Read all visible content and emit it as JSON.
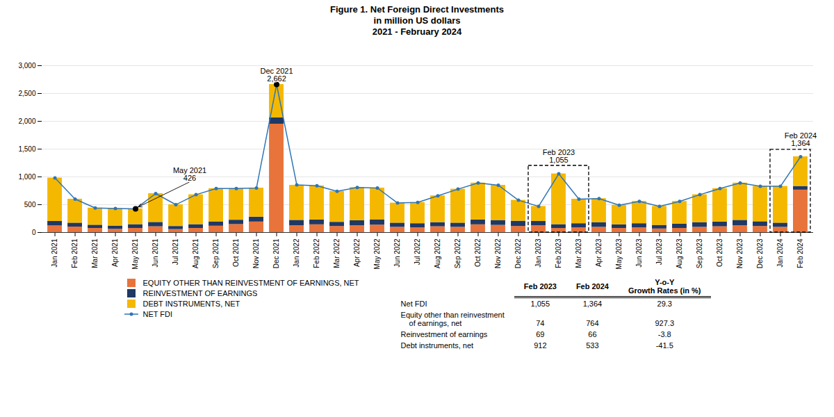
{
  "chart_data": {
    "type": "bar",
    "stacked": true,
    "title": "Figure 1. Net Foreign Direct Investments",
    "subtitle": [
      "in million US dollars",
      "2021 - February 2024"
    ],
    "categories": [
      "Jan 2021",
      "Feb 2021",
      "Mar 2021",
      "Apr 2021",
      "May 2021",
      "Jun 2021",
      "Jul 2021",
      "Aug 2021",
      "Sep 2021",
      "Oct 2021",
      "Nov 2021",
      "Dec 2021",
      "Jan 2022",
      "Feb 2022",
      "Mar 2022",
      "Apr 2022",
      "May 2022",
      "Jun 2022",
      "Jul 2022",
      "Aug 2022",
      "Sep 2022",
      "Oct 2022",
      "Nov 2022",
      "Dec 2022",
      "Jan 2023",
      "Feb 2023",
      "Mar 2023",
      "Apr 2023",
      "May 2023",
      "Jun 2023",
      "Jul 2023",
      "Aug 2023",
      "Sep 2023",
      "Oct 2023",
      "Nov 2023",
      "Dec 2023",
      "Jan 2024",
      "Feb 2024"
    ],
    "series": [
      {
        "name": "EQUITY OTHER THAN REINVESTMENT OF EARNINGS, NET",
        "color": "#E8743B",
        "values": [
          120,
          100,
          75,
          60,
          75,
          105,
          55,
          75,
          115,
          145,
          190,
          1950,
          125,
          140,
          110,
          125,
          135,
          95,
          85,
          105,
          95,
          140,
          130,
          110,
          125,
          74,
          85,
          95,
          75,
          85,
          65,
          75,
          95,
          105,
          125,
          110,
          95,
          764
        ]
      },
      {
        "name": "REINVESTMENT OF EARNINGS",
        "color": "#1F3864",
        "values": [
          80,
          70,
          58,
          58,
          68,
          78,
          55,
          68,
          78,
          78,
          88,
          112,
          95,
          88,
          75,
          88,
          95,
          75,
          75,
          75,
          75,
          88,
          88,
          95,
          75,
          69,
          75,
          85,
          65,
          75,
          65,
          75,
          85,
          85,
          95,
          85,
          75,
          66
        ]
      },
      {
        "name": "DEBT INSTRUMENTS, NET",
        "color": "#F5B800",
        "values": [
          780,
          430,
          307,
          312,
          283,
          517,
          390,
          537,
          597,
          567,
          522,
          600,
          630,
          612,
          555,
          597,
          570,
          360,
          380,
          480,
          610,
          662,
          632,
          375,
          270,
          912,
          440,
          430,
          350,
          400,
          340,
          410,
          500,
          600,
          670,
          635,
          660,
          533
        ]
      },
      {
        "name": "NET FDI",
        "type": "line",
        "color": "#2E75B6",
        "marker": "o",
        "values": [
          980,
          600,
          440,
          430,
          426,
          700,
          500,
          680,
          790,
          790,
          800,
          2662,
          855,
          840,
          740,
          810,
          800,
          530,
          540,
          660,
          780,
          890,
          850,
          580,
          470,
          1055,
          600,
          610,
          490,
          560,
          470,
          560,
          680,
          790,
          890,
          830,
          830,
          1364
        ]
      }
    ],
    "ylim": [
      0,
      3000
    ],
    "yticks": [
      0,
      500,
      {
        "value": 1000,
        "label": "1,000"
      },
      {
        "value": 1500,
        "label": "1,500"
      },
      {
        "value": 2000,
        "label": "2,000"
      },
      {
        "value": 2500,
        "label": "2,500"
      },
      {
        "value": 3000,
        "label": "3,000"
      }
    ],
    "grid": true,
    "legend": "bottom",
    "annotations": [
      {
        "text": "May 2021\n426",
        "category": "May 2021",
        "value": 426,
        "arrow": true,
        "marker": "o"
      },
      {
        "text": "Dec 2021\n2,662",
        "category": "Dec 2021",
        "value": 2662,
        "arrow": false,
        "marker": "o"
      },
      {
        "text": "Feb 2023\n1,055",
        "category": "Feb 2023",
        "value": 1055,
        "arrow": false
      },
      {
        "text": "Feb 2024\n1,364",
        "category": "Feb 2024",
        "value": 1364,
        "arrow": false
      }
    ],
    "boxes": [
      {
        "from": "Jan 2023",
        "to": "Mar 2023",
        "y0": 0,
        "y1": 1200,
        "line_style": "dashed"
      },
      {
        "from": "Jan 2024",
        "to": "Feb 2024",
        "y0": 0,
        "y1": 1490,
        "line_style": "dashed"
      }
    ],
    "table": {
      "columns": [
        [
          "Feb 2023"
        ],
        [
          "Feb 2024"
        ],
        [
          "Y-o-Y",
          "Growth Rates (in %)"
        ]
      ],
      "rows": [
        {
          "label": [
            "Net FDI"
          ],
          "values": [
            {
              "value": 1055,
              "label": "1,055"
            },
            {
              "value": 1364,
              "label": "1,364"
            },
            29.3
          ]
        },
        {
          "label": [
            "Equity other than reinvestment",
            "of earnings, net"
          ],
          "values": [
            74,
            764,
            927.3
          ]
        },
        {
          "label": [
            "Reinvestment of earnings"
          ],
          "values": [
            69,
            66,
            -3.8
          ]
        },
        {
          "label": [
            "Debt instruments, net"
          ],
          "values": [
            912,
            533,
            -41.5
          ]
        }
      ]
    }
  }
}
